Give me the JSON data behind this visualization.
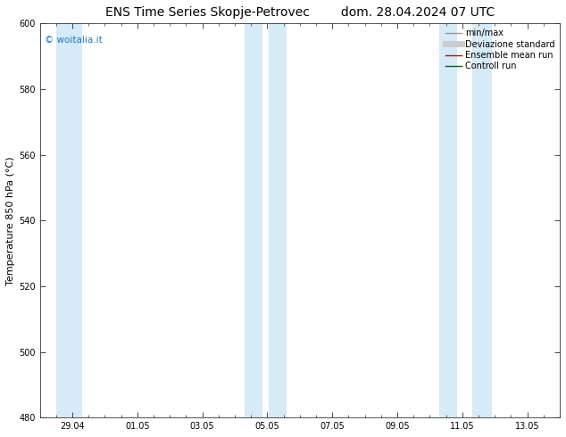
{
  "title_left": "ENS Time Series Skopje-Petrovec",
  "title_right": "dom. 28.04.2024 07 UTC",
  "ylabel": "Temperature 850 hPa (°C)",
  "ylim": [
    480,
    600
  ],
  "yticks": [
    480,
    500,
    520,
    540,
    560,
    580,
    600
  ],
  "x_tick_labels": [
    "29.04",
    "01.05",
    "03.05",
    "05.05",
    "07.05",
    "09.05",
    "11.05",
    "13.05"
  ],
  "bg_color": "#ffffff",
  "plot_bg_color": "#ffffff",
  "shade_color": "#d6eaf8",
  "shade_alpha": 1.0,
  "watermark_text": "© woitalia.it",
  "watermark_color": "#1a7abf",
  "legend_items": [
    {
      "label": "min/max",
      "color": "#999999",
      "lw": 1.0,
      "style": "solid"
    },
    {
      "label": "Deviazione standard",
      "color": "#cccccc",
      "lw": 5,
      "style": "solid"
    },
    {
      "label": "Ensemble mean run",
      "color": "#cc0000",
      "lw": 1.0,
      "style": "solid"
    },
    {
      "label": "Controll run",
      "color": "#006600",
      "lw": 1.0,
      "style": "solid"
    }
  ],
  "title_fontsize": 10,
  "axis_label_fontsize": 8,
  "tick_fontsize": 7,
  "legend_fontsize": 7
}
